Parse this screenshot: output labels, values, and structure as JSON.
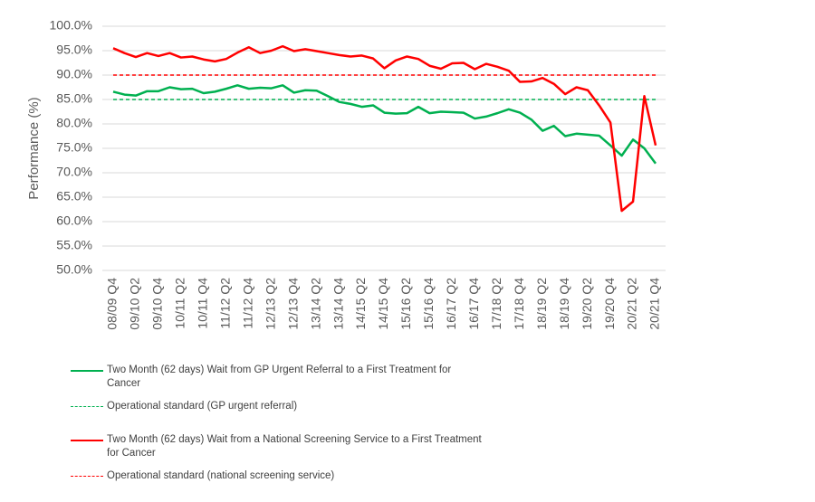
{
  "chart_data": {
    "type": "line",
    "y_label": "Performance (%)",
    "categories": [
      "08/09 Q4",
      null,
      "09/10 Q2",
      null,
      "09/10 Q4",
      null,
      "10/11 Q2",
      null,
      "10/11 Q4",
      null,
      "11/12 Q2",
      null,
      "11/12 Q4",
      null,
      "12/13 Q2",
      null,
      "12/13 Q4",
      null,
      "13/14 Q2",
      null,
      "13/14 Q4",
      null,
      "14/15 Q2",
      null,
      "14/15 Q4",
      null,
      "15/16 Q2",
      null,
      "15/16 Q4",
      null,
      "16/17 Q2",
      null,
      "16/17 Q4",
      null,
      "17/18 Q2",
      null,
      "17/18 Q4",
      null,
      "18/19 Q2",
      null,
      "18/19 Q4",
      null,
      "19/20 Q2",
      null,
      "19/20 Q4",
      null,
      "20/21 Q2",
      null,
      "20/21 Q4"
    ],
    "series": [
      {
        "name": "Two Month (62 days) Wait from GP Urgent Referral to a First Treatment for Cancer",
        "color": "#00b050",
        "dashed": false,
        "values": [
          86.6,
          86.0,
          85.8,
          86.7,
          86.7,
          87.5,
          87.1,
          87.2,
          86.3,
          86.6,
          87.2,
          87.9,
          87.2,
          87.4,
          87.3,
          87.9,
          86.4,
          86.9,
          86.8,
          85.7,
          84.5,
          84.1,
          83.5,
          83.8,
          82.3,
          82.1,
          82.2,
          83.5,
          82.2,
          82.5,
          82.4,
          82.3,
          81.1,
          81.5,
          82.2,
          83.0,
          82.3,
          80.9,
          78.6,
          79.6,
          77.5,
          78.0,
          77.8,
          77.6,
          75.6,
          73.5,
          76.8,
          75.0,
          71.9
        ]
      },
      {
        "name": "Operational standard (GP urgent referral)",
        "color": "#00b050",
        "dashed": true,
        "value": 85
      },
      {
        "name": "Two Month (62 days) Wait from a National Screening Service to a First Treatment for Cancer",
        "color": "#ff0000",
        "dashed": false,
        "values": [
          95.5,
          94.5,
          93.7,
          94.5,
          93.9,
          94.5,
          93.6,
          93.8,
          93.2,
          92.8,
          93.3,
          94.6,
          95.7,
          94.5,
          95.0,
          95.9,
          94.9,
          95.3,
          94.9,
          94.5,
          94.1,
          93.8,
          94.0,
          93.4,
          91.4,
          93.0,
          93.8,
          93.3,
          91.9,
          91.3,
          92.4,
          92.5,
          91.2,
          92.3,
          91.7,
          90.9,
          88.6,
          88.7,
          89.4,
          88.2,
          86.1,
          87.5,
          86.9,
          83.8,
          80.3,
          62.2,
          64.1,
          85.7,
          75.6
        ]
      },
      {
        "name": "Operational standard (national screening service)",
        "color": "#ff0000",
        "dashed": true,
        "value": 90
      }
    ],
    "ylim": [
      50,
      100
    ],
    "yticks": [
      {
        "value": 50,
        "label": "50.0%"
      },
      {
        "value": 55,
        "label": "55.0%"
      },
      {
        "value": 60,
        "label": "60.0%"
      },
      {
        "value": 65,
        "label": "65.0%"
      },
      {
        "value": 70,
        "label": "70.0%"
      },
      {
        "value": 75,
        "label": "75.0%"
      },
      {
        "value": 80,
        "label": "80.0%"
      },
      {
        "value": 85,
        "label": "85.0%"
      },
      {
        "value": 90,
        "label": "90.0%"
      },
      {
        "value": 95,
        "label": "95.0%"
      },
      {
        "value": 100,
        "label": "100.0%"
      }
    ],
    "grid": true
  }
}
